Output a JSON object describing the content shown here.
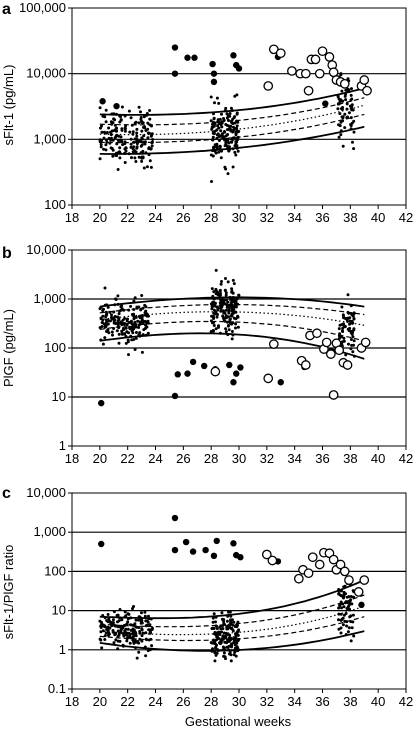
{
  "chart_data": [
    {
      "type": "scatter",
      "panel_label": "a",
      "ylabel": "sFlt-1 (pg/mL)",
      "xlabel": "",
      "y_scale": "log",
      "ylim": [
        100,
        100000
      ],
      "xlim": [
        18,
        42
      ],
      "y_ticks": [
        "100",
        "1,000",
        "10,000",
        "100,000"
      ],
      "x_ticks": [
        "18",
        "20",
        "22",
        "24",
        "26",
        "28",
        "30",
        "32",
        "34",
        "36",
        "38",
        "40",
        "42"
      ],
      "grid_lines_y": [
        1000,
        10000
      ],
      "clusters": [
        {
          "x_range": [
            20,
            23.8
          ],
          "y_center": 1100,
          "spread": 1.7,
          "n": 190
        },
        {
          "x_range": [
            28,
            30
          ],
          "y_center": 1200,
          "spread": 1.7,
          "n": 170
        },
        {
          "x_range": [
            37.1,
            38.3
          ],
          "y_center": 2800,
          "spread": 1.8,
          "n": 70
        }
      ],
      "outliers_filled": [
        [
          20.2,
          3800
        ],
        [
          21.2,
          3200
        ],
        [
          25.4,
          25000
        ],
        [
          25.4,
          10000
        ],
        [
          26.3,
          17500
        ],
        [
          26.8,
          17500
        ],
        [
          28.1,
          14000
        ],
        [
          28.2,
          10000
        ],
        [
          28.2,
          7500
        ],
        [
          29.6,
          19000
        ],
        [
          29.8,
          13500
        ],
        [
          30.0,
          12000
        ],
        [
          32.8,
          18000
        ],
        [
          36.2,
          3500
        ]
      ],
      "outliers_open": [
        [
          32.1,
          6500
        ],
        [
          32.5,
          23500
        ],
        [
          33.0,
          20500
        ],
        [
          33.8,
          11000
        ],
        [
          34.4,
          10000
        ],
        [
          34.8,
          10000
        ],
        [
          35.0,
          5500
        ],
        [
          35.2,
          16500
        ],
        [
          35.5,
          16500
        ],
        [
          35.8,
          10000
        ],
        [
          36.0,
          22000
        ],
        [
          36.5,
          18000
        ],
        [
          36.7,
          13500
        ],
        [
          36.8,
          10500
        ],
        [
          37.0,
          8000
        ],
        [
          37.3,
          7500
        ],
        [
          37.6,
          7000
        ],
        [
          38.8,
          6500
        ],
        [
          39.0,
          8000
        ],
        [
          39.2,
          5500
        ]
      ],
      "reference_curves": {
        "x_range": [
          20,
          39
        ],
        "median": [
          1200,
          1100,
          1400,
          3300
        ],
        "p25_p75": [
          [
            900,
            850,
            1050,
            2400
          ],
          [
            1700,
            1550,
            1850,
            4300
          ]
        ],
        "p5_p95": [
          [
            600,
            580,
            750,
            1550
          ],
          [
            2400,
            2200,
            2700,
            6000
          ]
        ]
      }
    },
    {
      "type": "scatter",
      "panel_label": "b",
      "ylabel": "PlGF (pg/mL)",
      "xlabel": "",
      "y_scale": "log",
      "ylim": [
        1,
        10000
      ],
      "xlim": [
        18,
        42
      ],
      "y_ticks": [
        "1",
        "10",
        "100",
        "1,000",
        "10,000"
      ],
      "x_ticks": [
        "18",
        "20",
        "22",
        "24",
        "26",
        "28",
        "30",
        "32",
        "34",
        "36",
        "38",
        "40",
        "42"
      ],
      "grid_lines_y": [
        10,
        100,
        1000
      ],
      "clusters": [
        {
          "x_range": [
            20,
            23.5
          ],
          "y_center": 330,
          "spread": 1.8,
          "n": 190
        },
        {
          "x_range": [
            28,
            30
          ],
          "y_center": 620,
          "spread": 1.9,
          "n": 170
        },
        {
          "x_range": [
            37.1,
            38.3
          ],
          "y_center": 250,
          "spread": 2.0,
          "n": 70
        }
      ],
      "outliers_filled": [
        [
          20.1,
          7.5
        ],
        [
          25.4,
          10.5
        ],
        [
          25.6,
          29
        ],
        [
          26.3,
          30
        ],
        [
          26.7,
          52
        ],
        [
          27.5,
          43
        ],
        [
          28.3,
          37
        ],
        [
          29.3,
          45
        ],
        [
          29.6,
          20
        ],
        [
          29.8,
          30
        ],
        [
          30.1,
          40
        ],
        [
          33.0,
          20
        ],
        [
          34.7,
          41
        ]
      ],
      "outliers_open": [
        [
          28.3,
          33
        ],
        [
          32.1,
          24
        ],
        [
          32.5,
          120
        ],
        [
          34.5,
          55
        ],
        [
          34.8,
          45
        ],
        [
          35.1,
          180
        ],
        [
          35.6,
          200
        ],
        [
          36.1,
          95
        ],
        [
          36.3,
          130
        ],
        [
          36.6,
          75
        ],
        [
          36.8,
          11
        ],
        [
          37.0,
          125
        ],
        [
          37.2,
          90
        ],
        [
          37.5,
          50
        ],
        [
          37.8,
          45
        ],
        [
          38.8,
          100
        ],
        [
          39.1,
          130
        ]
      ],
      "reference_curves": {
        "x_range": [
          20,
          39
        ],
        "median": [
          380,
          650,
          640,
          290
        ],
        "p25_p75": [
          [
            240,
            430,
            410,
            140
          ],
          [
            520,
            880,
            900,
            480
          ]
        ],
        "p5_p95": [
          [
            140,
            250,
            240,
            60
          ],
          [
            700,
            1200,
            1300,
            700
          ]
        ]
      }
    },
    {
      "type": "scatter",
      "panel_label": "c",
      "ylabel": "sFlt-1/PlGF ratio",
      "xlabel": "Gestational weeks",
      "y_scale": "log",
      "ylim": [
        0.1,
        10000
      ],
      "xlim": [
        18,
        42
      ],
      "y_ticks": [
        "0.1",
        "1",
        "10",
        "100",
        "1,000",
        "10,000"
      ],
      "x_ticks": [
        "18",
        "20",
        "22",
        "24",
        "26",
        "28",
        "30",
        "32",
        "34",
        "36",
        "38",
        "40",
        "42"
      ],
      "grid_lines_y": [
        1,
        10,
        100,
        1000
      ],
      "clusters": [
        {
          "x_range": [
            20,
            23.8
          ],
          "y_center": 3.2,
          "spread": 1.9,
          "n": 190
        },
        {
          "x_range": [
            28,
            30
          ],
          "y_center": 2.0,
          "spread": 2.1,
          "n": 170
        },
        {
          "x_range": [
            37.1,
            38.3
          ],
          "y_center": 12,
          "spread": 2.3,
          "n": 70
        }
      ],
      "outliers_filled": [
        [
          20.1,
          500
        ],
        [
          25.4,
          2300
        ],
        [
          25.4,
          350
        ],
        [
          26.2,
          560
        ],
        [
          26.7,
          320
        ],
        [
          27.6,
          350
        ],
        [
          28.2,
          250
        ],
        [
          28.4,
          600
        ],
        [
          29.6,
          520
        ],
        [
          29.8,
          260
        ],
        [
          30.1,
          230
        ],
        [
          32.8,
          180
        ],
        [
          38.8,
          14
        ]
      ],
      "outliers_open": [
        [
          32.0,
          270
        ],
        [
          32.4,
          190
        ],
        [
          34.3,
          65
        ],
        [
          34.6,
          110
        ],
        [
          35.0,
          90
        ],
        [
          35.3,
          230
        ],
        [
          35.8,
          150
        ],
        [
          36.1,
          300
        ],
        [
          36.5,
          290
        ],
        [
          36.8,
          200
        ],
        [
          37.0,
          110
        ],
        [
          37.3,
          150
        ],
        [
          37.6,
          100
        ],
        [
          37.9,
          60
        ],
        [
          38.6,
          30
        ],
        [
          39.0,
          60
        ]
      ],
      "reference_curves": {
        "x_range": [
          20,
          39
        ],
        "median": [
          3.0,
          2.0,
          2.1,
          13
        ],
        "p25_p75": [
          [
            2.2,
            1.4,
            1.5,
            7
          ],
          [
            4.5,
            3.2,
            3.6,
            25
          ]
        ],
        "p5_p95": [
          [
            1.5,
            0.7,
            0.8,
            3
          ],
          [
            7,
            5.5,
            6,
            60
          ]
        ]
      }
    }
  ]
}
